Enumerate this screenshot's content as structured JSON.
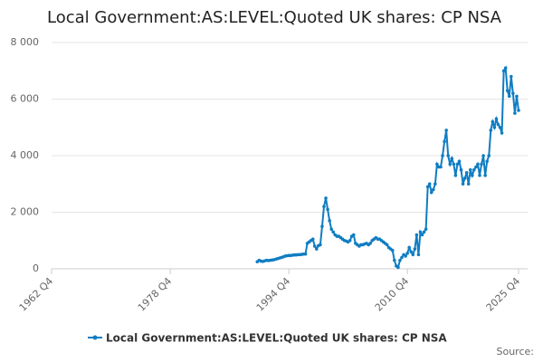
{
  "chart_data": {
    "type": "line",
    "title": "Local Government:AS:LEVEL:Quoted UK shares: CP NSA",
    "source_label": "Source:",
    "categories": [
      "1962 Q4",
      null,
      null,
      null,
      null,
      null,
      null,
      null,
      null,
      null,
      null,
      null,
      null,
      null,
      null,
      null,
      null,
      null,
      null,
      null,
      null,
      null,
      null,
      null,
      null,
      null,
      null,
      null,
      null,
      null,
      null,
      null,
      null,
      null,
      null,
      null,
      null,
      null,
      null,
      null,
      null,
      null,
      null,
      null,
      null,
      null,
      null,
      null,
      null,
      null,
      null,
      null,
      null,
      null,
      null,
      null,
      null,
      null,
      null,
      null,
      null,
      null,
      null,
      null,
      "1978 Q4",
      null,
      null,
      null,
      null,
      null,
      null,
      null,
      null,
      null,
      null,
      null,
      null,
      null,
      null,
      null,
      null,
      null,
      null,
      null,
      null,
      null,
      null,
      null,
      null,
      null,
      null,
      null,
      null,
      null,
      null,
      null,
      null,
      null,
      null,
      null,
      null,
      null,
      null,
      null,
      null,
      null,
      null,
      null,
      null,
      null,
      null,
      null,
      null,
      null,
      null,
      null,
      null,
      null,
      null,
      null,
      null,
      null,
      null,
      null,
      null,
      null,
      null,
      null,
      "1994 Q4",
      null,
      null,
      null,
      null,
      null,
      null,
      null,
      null,
      null,
      null,
      null,
      null,
      null,
      null,
      null,
      null,
      null,
      null,
      null,
      null,
      null,
      null,
      null,
      null,
      null,
      null,
      null,
      null,
      null,
      null,
      null,
      null,
      null,
      null,
      null,
      null,
      null,
      null,
      null,
      null,
      null,
      null,
      null,
      null,
      null,
      null,
      null,
      null,
      null,
      null,
      null,
      null,
      null,
      null,
      null,
      null,
      null,
      null,
      null,
      null,
      null,
      null,
      null,
      "2010 Q4",
      null,
      null,
      null,
      null,
      null,
      null,
      null,
      null,
      null,
      null,
      null,
      null,
      null,
      null,
      null,
      null,
      null,
      null,
      null,
      null,
      null,
      null,
      null,
      null,
      null,
      null,
      null,
      null,
      null,
      null,
      null,
      null,
      null,
      null,
      null,
      null,
      null,
      null,
      null,
      null,
      null,
      null,
      null,
      null,
      null,
      null,
      null,
      null,
      null,
      null,
      null,
      null,
      null,
      null,
      null,
      null,
      null,
      null,
      null,
      "2025 Q4"
    ],
    "series": [
      {
        "name": "Local Government:AS:LEVEL:Quoted UK shares: CP NSA",
        "color": "#0f7dc2",
        "values": [
          null,
          null,
          null,
          null,
          null,
          null,
          null,
          null,
          null,
          null,
          null,
          null,
          null,
          null,
          null,
          null,
          null,
          null,
          null,
          null,
          null,
          null,
          null,
          null,
          null,
          null,
          null,
          null,
          null,
          null,
          null,
          null,
          null,
          null,
          null,
          null,
          null,
          null,
          null,
          null,
          null,
          null,
          null,
          null,
          null,
          null,
          null,
          null,
          null,
          null,
          null,
          null,
          null,
          null,
          null,
          null,
          null,
          null,
          null,
          null,
          null,
          null,
          null,
          null,
          null,
          null,
          null,
          null,
          null,
          null,
          null,
          null,
          null,
          null,
          null,
          null,
          null,
          null,
          null,
          null,
          null,
          null,
          null,
          null,
          null,
          null,
          null,
          null,
          null,
          null,
          null,
          null,
          null,
          null,
          null,
          null,
          null,
          null,
          null,
          null,
          null,
          null,
          null,
          null,
          null,
          null,
          null,
          null,
          null,
          null,
          null,
          250,
          300,
          270,
          260,
          280,
          300,
          290,
          300,
          310,
          320,
          340,
          360,
          380,
          400,
          420,
          450,
          460,
          470,
          470,
          480,
          490,
          490,
          500,
          500,
          510,
          520,
          520,
          900,
          950,
          1000,
          1050,
          800,
          700,
          820,
          850,
          1500,
          2200,
          2500,
          2100,
          1700,
          1400,
          1300,
          1200,
          1150,
          1150,
          1100,
          1050,
          1000,
          980,
          950,
          1000,
          1150,
          1200,
          900,
          850,
          800,
          850,
          850,
          880,
          900,
          850,
          900,
          1000,
          1050,
          1100,
          1050,
          1050,
          1000,
          950,
          900,
          850,
          750,
          700,
          650,
          300,
          100,
          50,
          300,
          400,
          500,
          450,
          550,
          750,
          600,
          500,
          700,
          1200,
          500,
          1300,
          1200,
          1300,
          1400,
          2900,
          3000,
          2700,
          2800,
          3000,
          3700,
          3600,
          3600,
          4000,
          4500,
          4900,
          4000,
          3700,
          3900,
          3700,
          3300,
          3700,
          3800,
          3500,
          3000,
          3200,
          3400,
          3000,
          3500,
          3300,
          3500,
          3600,
          3700,
          3300,
          3700,
          4000,
          3300,
          3800,
          4000,
          4900,
          5200,
          5000,
          5300,
          5100,
          5000,
          4800,
          7000,
          7100,
          6300,
          6100,
          6800,
          6200,
          5500,
          6100,
          5600
        ]
      }
    ],
    "ylim": [
      0,
      8000
    ],
    "yticks": [
      0,
      {
        "value": 2000,
        "label": "2 000"
      },
      {
        "value": 4000,
        "label": "4 000"
      },
      {
        "value": 6000,
        "label": "6 000"
      },
      {
        "value": 8000,
        "label": "8 000"
      }
    ],
    "grid": true
  }
}
